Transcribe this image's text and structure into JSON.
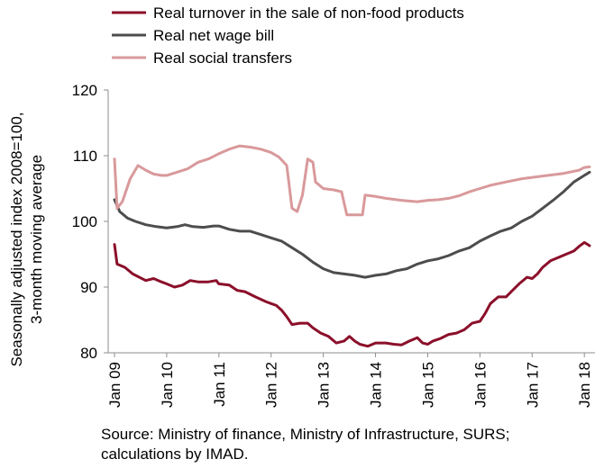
{
  "chart_data": {
    "type": "line",
    "title": "",
    "xlabel": "",
    "ylabel": "Seasonally adjusted index 2008=100, 3-month moving average",
    "ylabel_lines": [
      "Seasonally adjusted index 2008=100,",
      "3-month moving average"
    ],
    "ylim": [
      80,
      120
    ],
    "yticks": [
      "80",
      "90",
      "100",
      "110",
      "120"
    ],
    "xticks": [
      "Jan 09",
      "Jan 10",
      "Jan 11",
      "Jan 12",
      "Jan 13",
      "Jan 14",
      "Jan 15",
      "Jan 16",
      "Jan 17",
      "Jan 18"
    ],
    "grid": false,
    "legend_position": "top",
    "series": [
      {
        "name": "Real turnover in the sale of non-food products",
        "color": "#8b0f2a",
        "points": [
          [
            2009.0,
            96.5
          ],
          [
            2009.05,
            93.5
          ],
          [
            2009.2,
            93
          ],
          [
            2009.35,
            92
          ],
          [
            2009.6,
            91
          ],
          [
            2009.75,
            91.3
          ],
          [
            2009.9,
            90.8
          ],
          [
            2010.0,
            90.5
          ],
          [
            2010.15,
            90
          ],
          [
            2010.3,
            90.3
          ],
          [
            2010.45,
            91
          ],
          [
            2010.6,
            90.8
          ],
          [
            2010.8,
            90.8
          ],
          [
            2010.95,
            91
          ],
          [
            2011.0,
            90.5
          ],
          [
            2011.2,
            90.3
          ],
          [
            2011.35,
            89.5
          ],
          [
            2011.5,
            89.3
          ],
          [
            2011.7,
            88.5
          ],
          [
            2011.9,
            87.8
          ],
          [
            2012.0,
            87.5
          ],
          [
            2012.1,
            87.2
          ],
          [
            2012.2,
            86.5
          ],
          [
            2012.3,
            85.5
          ],
          [
            2012.4,
            84.3
          ],
          [
            2012.55,
            84.5
          ],
          [
            2012.7,
            84.5
          ],
          [
            2012.8,
            83.8
          ],
          [
            2012.95,
            83
          ],
          [
            2013.1,
            82.5
          ],
          [
            2013.25,
            81.5
          ],
          [
            2013.4,
            81.8
          ],
          [
            2013.5,
            82.5
          ],
          [
            2013.6,
            81.8
          ],
          [
            2013.7,
            81.3
          ],
          [
            2013.85,
            81
          ],
          [
            2014.0,
            81.5
          ],
          [
            2014.2,
            81.5
          ],
          [
            2014.35,
            81.3
          ],
          [
            2014.5,
            81.2
          ],
          [
            2014.65,
            81.8
          ],
          [
            2014.8,
            82.3
          ],
          [
            2014.9,
            81.5
          ],
          [
            2015.0,
            81.3
          ],
          [
            2015.1,
            81.8
          ],
          [
            2015.25,
            82.2
          ],
          [
            2015.4,
            82.8
          ],
          [
            2015.55,
            83
          ],
          [
            2015.7,
            83.5
          ],
          [
            2015.85,
            84.5
          ],
          [
            2016.0,
            84.8
          ],
          [
            2016.1,
            86
          ],
          [
            2016.2,
            87.5
          ],
          [
            2016.35,
            88.5
          ],
          [
            2016.5,
            88.5
          ],
          [
            2016.6,
            89.3
          ],
          [
            2016.75,
            90.5
          ],
          [
            2016.9,
            91.5
          ],
          [
            2017.0,
            91.3
          ],
          [
            2017.1,
            92
          ],
          [
            2017.2,
            93
          ],
          [
            2017.35,
            94
          ],
          [
            2017.5,
            94.5
          ],
          [
            2017.65,
            95
          ],
          [
            2017.8,
            95.5
          ],
          [
            2017.9,
            96.2
          ],
          [
            2018.0,
            96.8
          ],
          [
            2018.1,
            96.3
          ]
        ]
      },
      {
        "name": "Real net wage bill",
        "color": "#4d4d4d",
        "points": [
          [
            2009.0,
            103.3
          ],
          [
            2009.1,
            101.5
          ],
          [
            2009.25,
            100.5
          ],
          [
            2009.4,
            100
          ],
          [
            2009.6,
            99.5
          ],
          [
            2009.8,
            99.2
          ],
          [
            2010.0,
            99
          ],
          [
            2010.2,
            99.2
          ],
          [
            2010.35,
            99.5
          ],
          [
            2010.5,
            99.2
          ],
          [
            2010.7,
            99.1
          ],
          [
            2010.9,
            99.3
          ],
          [
            2011.0,
            99.3
          ],
          [
            2011.2,
            98.8
          ],
          [
            2011.4,
            98.5
          ],
          [
            2011.6,
            98.5
          ],
          [
            2011.8,
            98
          ],
          [
            2012.0,
            97.5
          ],
          [
            2012.2,
            97
          ],
          [
            2012.4,
            96
          ],
          [
            2012.6,
            95
          ],
          [
            2012.8,
            93.8
          ],
          [
            2013.0,
            92.8
          ],
          [
            2013.2,
            92.2
          ],
          [
            2013.4,
            92
          ],
          [
            2013.6,
            91.8
          ],
          [
            2013.8,
            91.5
          ],
          [
            2014.0,
            91.8
          ],
          [
            2014.2,
            92
          ],
          [
            2014.4,
            92.5
          ],
          [
            2014.6,
            92.8
          ],
          [
            2014.8,
            93.5
          ],
          [
            2015.0,
            94
          ],
          [
            2015.2,
            94.3
          ],
          [
            2015.4,
            94.8
          ],
          [
            2015.6,
            95.5
          ],
          [
            2015.8,
            96
          ],
          [
            2016.0,
            97
          ],
          [
            2016.2,
            97.8
          ],
          [
            2016.4,
            98.5
          ],
          [
            2016.6,
            99
          ],
          [
            2016.8,
            100
          ],
          [
            2017.0,
            100.8
          ],
          [
            2017.2,
            102
          ],
          [
            2017.4,
            103.2
          ],
          [
            2017.6,
            104.5
          ],
          [
            2017.8,
            106
          ],
          [
            2018.0,
            107
          ],
          [
            2018.1,
            107.5
          ]
        ]
      },
      {
        "name": "Real social transfers",
        "color": "#d9999b",
        "points": [
          [
            2009.0,
            109.5
          ],
          [
            2009.05,
            102
          ],
          [
            2009.15,
            103
          ],
          [
            2009.3,
            106.5
          ],
          [
            2009.45,
            108.5
          ],
          [
            2009.6,
            107.8
          ],
          [
            2009.75,
            107.2
          ],
          [
            2009.9,
            107
          ],
          [
            2010.0,
            107
          ],
          [
            2010.2,
            107.5
          ],
          [
            2010.4,
            108
          ],
          [
            2010.6,
            109
          ],
          [
            2010.8,
            109.5
          ],
          [
            2011.0,
            110.3
          ],
          [
            2011.2,
            111
          ],
          [
            2011.4,
            111.5
          ],
          [
            2011.6,
            111.3
          ],
          [
            2011.8,
            111
          ],
          [
            2012.0,
            110.5
          ],
          [
            2012.15,
            109.8
          ],
          [
            2012.3,
            108.5
          ],
          [
            2012.4,
            102
          ],
          [
            2012.5,
            101.5
          ],
          [
            2012.6,
            104
          ],
          [
            2012.7,
            109.5
          ],
          [
            2012.8,
            109
          ],
          [
            2012.85,
            106
          ],
          [
            2013.0,
            105
          ],
          [
            2013.2,
            104.8
          ],
          [
            2013.35,
            104.5
          ],
          [
            2013.45,
            101
          ],
          [
            2013.6,
            101
          ],
          [
            2013.75,
            101
          ],
          [
            2013.8,
            104
          ],
          [
            2014.0,
            103.8
          ],
          [
            2014.2,
            103.5
          ],
          [
            2014.5,
            103.2
          ],
          [
            2014.8,
            103
          ],
          [
            2015.0,
            103.2
          ],
          [
            2015.2,
            103.3
          ],
          [
            2015.4,
            103.5
          ],
          [
            2015.6,
            103.9
          ],
          [
            2015.8,
            104.5
          ],
          [
            2016.0,
            105
          ],
          [
            2016.2,
            105.5
          ],
          [
            2016.5,
            106
          ],
          [
            2016.8,
            106.5
          ],
          [
            2017.0,
            106.7
          ],
          [
            2017.3,
            107
          ],
          [
            2017.6,
            107.3
          ],
          [
            2017.9,
            107.8
          ],
          [
            2018.0,
            108.2
          ],
          [
            2018.1,
            108.3
          ]
        ]
      }
    ]
  },
  "source_note": "Source: Ministry of finance, Ministry of Infrastructure, SURS; calculations by IMAD."
}
